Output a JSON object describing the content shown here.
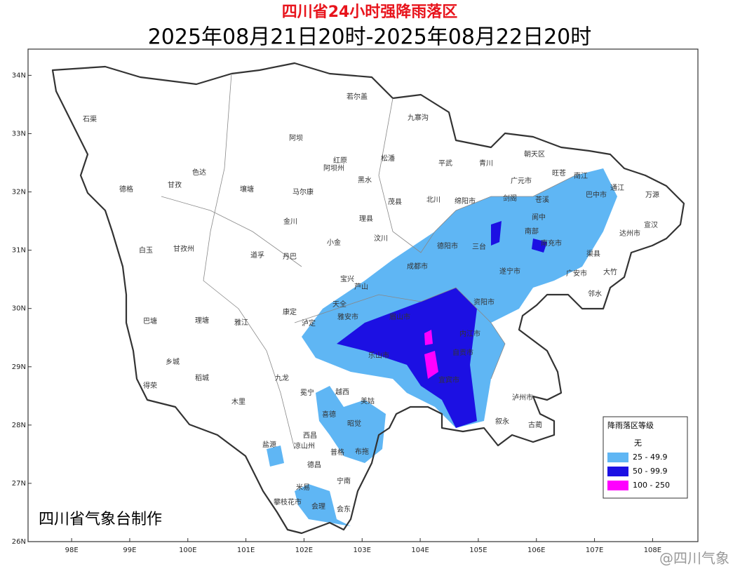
{
  "header": {
    "title": "四川省24小时强降雨落区",
    "subtitle": "2025年08月21日20时-2025年08月22日20时"
  },
  "map": {
    "xlim": [
      97.25,
      108.78
    ],
    "ylim": [
      26,
      34.45
    ],
    "xticks": [
      {
        "value": 98,
        "label": "98E"
      },
      {
        "value": 99,
        "label": "99E"
      },
      {
        "value": 100,
        "label": "100E"
      },
      {
        "value": 101,
        "label": "101E"
      },
      {
        "value": 102,
        "label": "102E"
      },
      {
        "value": 103,
        "label": "103E"
      },
      {
        "value": 104,
        "label": "104E"
      },
      {
        "value": 105,
        "label": "105E"
      },
      {
        "value": 106,
        "label": "106E"
      },
      {
        "value": 107,
        "label": "107E"
      },
      {
        "value": 108,
        "label": "108E"
      }
    ],
    "yticks": [
      {
        "value": 26,
        "label": "26N"
      },
      {
        "value": 27,
        "label": "27N"
      },
      {
        "value": 28,
        "label": "28N"
      },
      {
        "value": 29,
        "label": "29N"
      },
      {
        "value": 30,
        "label": "30N"
      },
      {
        "value": 31,
        "label": "31N"
      },
      {
        "value": 32,
        "label": "32N"
      },
      {
        "value": 33,
        "label": "33N"
      },
      {
        "value": 34,
        "label": "34N"
      }
    ]
  },
  "places": [
    "石渠",
    "若尔盖",
    "九寨沟",
    "阿坝",
    "红原",
    "阿坝州",
    "松潘",
    "平武",
    "青川",
    "朝天区",
    "旺苍",
    "德格",
    "甘孜",
    "色达",
    "壤塘",
    "马尔康",
    "黑水",
    "广元市",
    "巴中市",
    "通江",
    "万源",
    "北川",
    "绵阳市",
    "茂县",
    "金川",
    "理县",
    "剑阁",
    "苍溪",
    "南江",
    "宣汉",
    "达州市",
    "汶川",
    "小金",
    "阆中",
    "南部",
    "德阳市",
    "三台",
    "南充市",
    "白玉",
    "甘孜州",
    "道孚",
    "丹巴",
    "成都市",
    "遂宁市",
    "广安市",
    "渠县",
    "大竹",
    "邻水",
    "宝兴",
    "芦山",
    "天全",
    "雅安市",
    "眉山市",
    "乐山市",
    "资阳市",
    "内江市",
    "自贡市",
    "康定",
    "泸定",
    "巴塘",
    "理塘",
    "雅江",
    "乡城",
    "稻城",
    "得荣",
    "九龙",
    "木里",
    "宜宾市",
    "泸州市",
    "古蔺",
    "叙永",
    "冕宁",
    "越西",
    "美姑",
    "昭觉",
    "喜德",
    "西昌",
    "凉山州",
    "盐源",
    "普格",
    "布拖",
    "德昌",
    "宁南",
    "米易",
    "攀枝花市",
    "会理",
    "会东"
  ],
  "legend": {
    "title": "降雨落区等级",
    "items": [
      {
        "label": "无",
        "color": "#ffffff"
      },
      {
        "label": "25 - 49.9",
        "color": "#5fb6f4"
      },
      {
        "label": "50 - 99.9",
        "color": "#1c10e3"
      },
      {
        "label": "100 - 250",
        "color": "#ff00ff"
      }
    ]
  },
  "credit": "四川省气象台制作",
  "watermark": "@四川气象"
}
